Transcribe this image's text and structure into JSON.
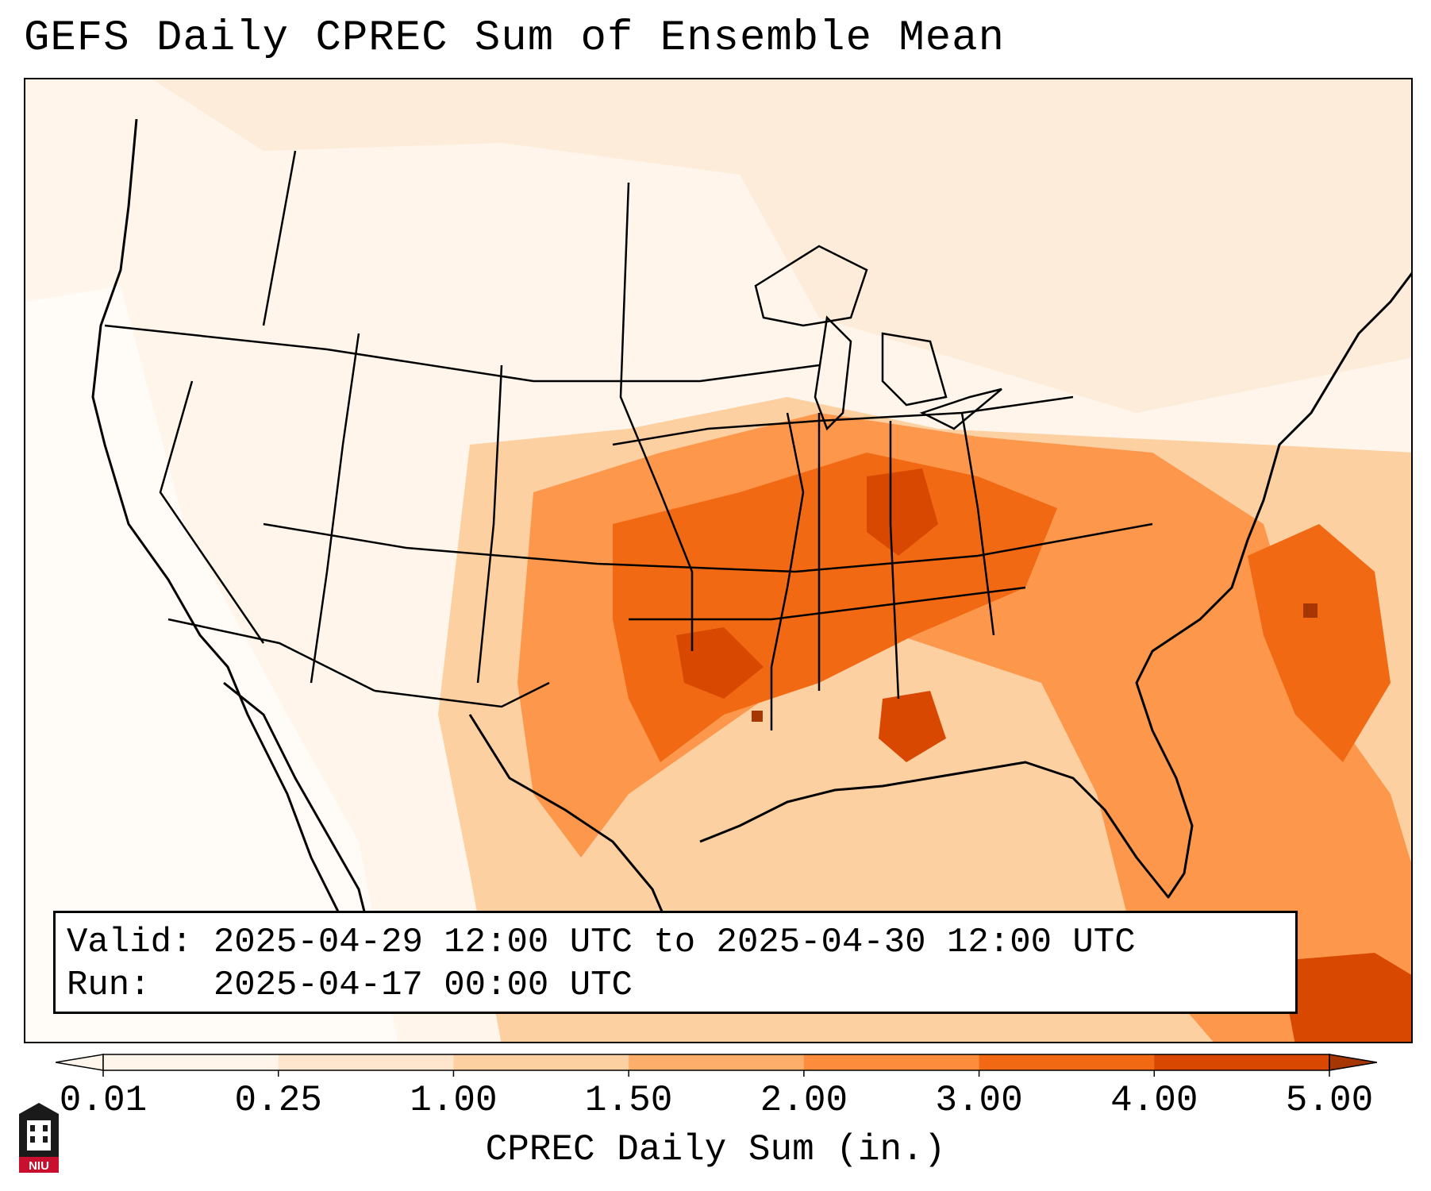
{
  "title": "GEFS Daily CPREC Sum of Ensemble Mean",
  "info_box": {
    "valid_line": "Valid: 2025-04-29 12:00 UTC to 2025-04-30 12:00 UTC",
    "run_line": "Run:   2025-04-17 00:00 UTC"
  },
  "colorbar": {
    "label": "CPREC Daily Sum (in.)",
    "ticks": [
      "0.01",
      "0.25",
      "1.00",
      "1.50",
      "2.00",
      "3.00",
      "4.00",
      "5.00"
    ],
    "colors": [
      "#fff5eb",
      "#fee6ce",
      "#fdd0a2",
      "#fdae6b",
      "#fd8d3c",
      "#f16913",
      "#d94801",
      "#a63603"
    ]
  },
  "logo": {
    "text": "NIU",
    "color": "#c8102e"
  },
  "map": {
    "projection": "Lambert Conformal, CONUS",
    "max_precip_region": "Southern Plains through Ohio Valley and western Atlantic"
  }
}
